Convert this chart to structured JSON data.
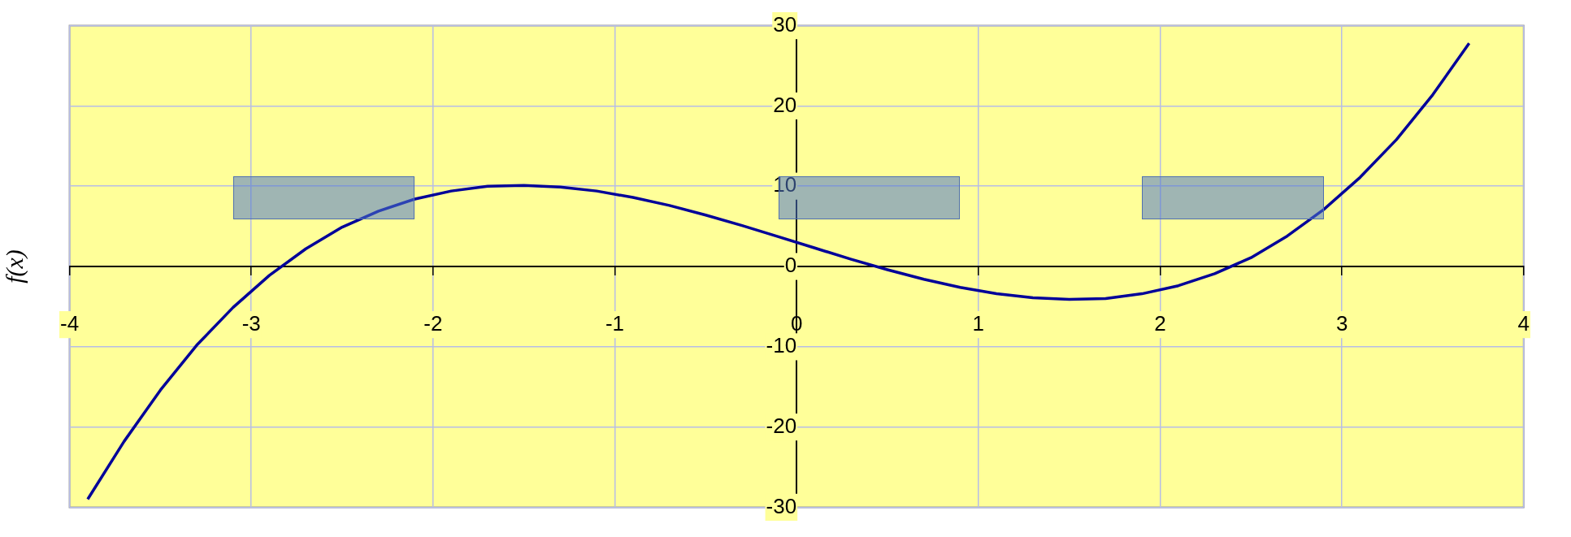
{
  "chart_data": {
    "type": "line",
    "ylabel": "f(x)",
    "x": [
      -3.9,
      -3.7,
      -3.5,
      -3.3,
      -3.1,
      -2.9,
      -2.7,
      -2.5,
      -2.3,
      -2.1,
      -1.9,
      -1.7,
      -1.5,
      -1.3,
      -1.1,
      -0.9,
      -0.7,
      -0.5,
      -0.3,
      -0.1,
      0.1,
      0.3,
      0.5,
      0.7,
      0.9,
      1.1,
      1.3,
      1.5,
      1.7,
      1.9,
      2.1,
      2.3,
      2.5,
      2.7,
      2.9,
      3.1,
      3.3,
      3.5,
      3.7
    ],
    "series": [
      {
        "color": "#000099",
        "values": [
          -29.0,
          -21.8,
          -15.4,
          -9.8,
          -5.1,
          -1.1,
          2.2,
          4.9,
          6.9,
          8.4,
          9.4,
          10.0,
          10.1,
          9.9,
          9.4,
          8.6,
          7.6,
          6.4,
          5.1,
          3.7,
          2.3,
          0.9,
          -0.4,
          -1.6,
          -2.6,
          -3.4,
          -3.9,
          -4.1,
          -4.0,
          -3.4,
          -2.4,
          -0.9,
          1.1,
          3.8,
          7.1,
          11.1,
          15.8,
          21.4,
          27.8
        ]
      }
    ],
    "xlim": [
      -4,
      4
    ],
    "ylim": [
      -30,
      30
    ],
    "xticks": [
      -4,
      -3,
      -2,
      -1,
      0,
      1,
      2,
      3,
      4
    ],
    "yticks": [
      -30,
      -20,
      -10,
      0,
      10,
      20,
      30
    ],
    "grid": true,
    "line_style": "solid"
  }
}
